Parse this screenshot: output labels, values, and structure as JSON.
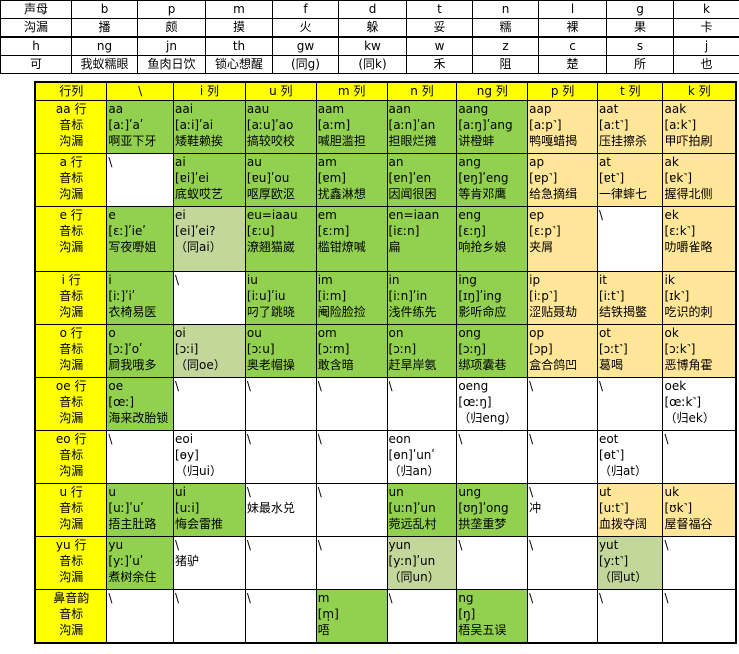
{
  "top_rows": [
    [
      "声母",
      "b",
      "p",
      "m",
      "f",
      "d",
      "t",
      "n",
      "l",
      "g",
      "k"
    ],
    [
      "沟漏",
      "播",
      "颇",
      "摸",
      "火",
      "躲",
      "妥",
      "糯",
      "裸",
      "果",
      "卡"
    ],
    [
      "h",
      "ng",
      "jn",
      "th",
      "gw",
      "kw",
      "w",
      "z",
      "c",
      "s",
      "j"
    ],
    [
      "可",
      "我蚁糯眼",
      "鱼肉日饮",
      "锁心想醒",
      "(同g)",
      "(同k)",
      "禾",
      "阻",
      "楚",
      "所",
      "也"
    ]
  ],
  "header": [
    "行列",
    "\\",
    "i 列",
    "u 列",
    "m 列",
    "n 列",
    "ng 列",
    "p 列",
    "t 列",
    "k 列"
  ],
  "rows": [
    {
      "head": [
        "aa 行",
        "音标",
        "沟漏"
      ],
      "cells": [
        {
          "c": "g",
          "t": [
            "aa",
            "[aː]ʹaʹ",
            "啊亚下牙"
          ]
        },
        {
          "c": "g",
          "t": [
            "aai",
            "[aːi]ʹai",
            "矮鞋赖挨"
          ]
        },
        {
          "c": "g",
          "t": [
            "aau",
            "[aːu]ʹao",
            "搞较咬校"
          ]
        },
        {
          "c": "g",
          "t": [
            "aam",
            "[aːm]",
            "喊胆滥担"
          ]
        },
        {
          "c": "g",
          "t": [
            "aan",
            "[aːn]ʹan",
            "担眼烂摊"
          ]
        },
        {
          "c": "g",
          "t": [
            "aang",
            "[aːŋ]ʹang",
            "讲橙蚌"
          ]
        },
        {
          "c": "y",
          "t": [
            "aap",
            "[aːp˺]",
            "鸭嘎蜡揭"
          ]
        },
        {
          "c": "y",
          "t": [
            "aat",
            "[aːt˺]",
            "压挂擦杀"
          ]
        },
        {
          "c": "y",
          "t": [
            "aak",
            "[aːk˺]",
            "甲吓拍刷"
          ]
        }
      ]
    },
    {
      "head": [
        "a 行",
        "音标",
        "沟漏"
      ],
      "cells": [
        {
          "c": "w",
          "t": [
            "\\",
            "",
            ""
          ]
        },
        {
          "c": "g",
          "t": [
            "ai",
            "[ɐi]ʹei",
            "底蚁哎艺"
          ]
        },
        {
          "c": "g",
          "t": [
            "au",
            "[ɐu]ʹou",
            "呕厚欧沤"
          ]
        },
        {
          "c": "g",
          "t": [
            "am",
            "[ɐm]",
            "扰鑫淋想"
          ]
        },
        {
          "c": "g",
          "t": [
            "an",
            "[ɐn]ʹen",
            "因闻很困"
          ]
        },
        {
          "c": "g",
          "t": [
            "ang",
            "[ɐŋ]ʹeng",
            "等肯邓鹰"
          ]
        },
        {
          "c": "y",
          "t": [
            "ap",
            "[ɐp˺]",
            "给急摘缉"
          ]
        },
        {
          "c": "y",
          "t": [
            "at",
            "[ɐt˺]",
            "一律蟀七"
          ]
        },
        {
          "c": "y",
          "t": [
            "ak",
            "[ɐk˺]",
            "握得北侧"
          ]
        }
      ]
    },
    {
      "head": [
        "e 行",
        "音标",
        "沟漏"
      ],
      "cells": [
        {
          "c": "g",
          "t": [
            "e",
            "[ɛː]ʹieʹ",
            "写夜嘢姐"
          ]
        },
        {
          "c": "lg",
          "t": [
            "ei",
            "[ei]ʹei?",
            "（同ai）"
          ]
        },
        {
          "c": "g",
          "t": [
            "eu=iaau",
            "[ɛːu]",
            "潦翘猫崴"
          ]
        },
        {
          "c": "g",
          "t": [
            "em",
            "[ɛːm]",
            "槛钳燎喊"
          ]
        },
        {
          "c": "g",
          "t": [
            "en=iaan",
            "[iɛːn]",
            "扁",
            ""
          ]
        },
        {
          "c": "g",
          "t": [
            "eng",
            "[ɛːŋ]",
            "响抢乡娘"
          ]
        },
        {
          "c": "y",
          "t": [
            "ep",
            "[ɛːp˺]",
            "夹屑"
          ]
        },
        {
          "c": "w",
          "t": [
            "\\",
            "",
            ""
          ]
        },
        {
          "c": "y",
          "t": [
            "ek",
            "[ɛːk˺]",
            "叻嚼雀略"
          ]
        }
      ]
    },
    {
      "head": [
        "i 行",
        "音标",
        "沟漏"
      ],
      "cells": [
        {
          "c": "g",
          "t": [
            "i",
            "[iː]ʹiʹ",
            "衣椅易医"
          ]
        },
        {
          "c": "w",
          "t": [
            "\\",
            "",
            ""
          ]
        },
        {
          "c": "g",
          "t": [
            "iu",
            "[iːu]ʹiu",
            "叼了跳晓"
          ]
        },
        {
          "c": "g",
          "t": [
            "im",
            "[iːm]",
            "阉险脸捡"
          ]
        },
        {
          "c": "g",
          "t": [
            "in",
            "[iːn]ʹin",
            "浅件练先"
          ]
        },
        {
          "c": "g",
          "t": [
            "ing",
            "[ɪŋ]ʹing",
            "影听命应"
          ]
        },
        {
          "c": "y",
          "t": [
            "ip",
            "[iːp˺]",
            "涩贴聂劫"
          ]
        },
        {
          "c": "y",
          "t": [
            "it",
            "[iːt˺]",
            "结铁揭鳖"
          ]
        },
        {
          "c": "y",
          "t": [
            "ik",
            "[ɪk˺]",
            "吃识的刺"
          ]
        }
      ]
    },
    {
      "head": [
        "o 行",
        "音标",
        "沟漏"
      ],
      "cells": [
        {
          "c": "g",
          "t": [
            "o",
            "[ɔː]ʹoʹ",
            "屙我哦多"
          ]
        },
        {
          "c": "lg",
          "t": [
            "oi",
            "[ɔːi]",
            "（同oe）"
          ]
        },
        {
          "c": "g",
          "t": [
            "ou",
            "[ɔːu]",
            "奥老帽操"
          ]
        },
        {
          "c": "g",
          "t": [
            "om",
            "[ɔːm]",
            "敢含暗"
          ]
        },
        {
          "c": "g",
          "t": [
            "on",
            "[ɔːn]",
            "赶旱岸氨"
          ]
        },
        {
          "c": "g",
          "t": [
            "ong",
            "[ɔːŋ]",
            "绑项囊巷"
          ]
        },
        {
          "c": "y",
          "t": [
            "op",
            "[ɔp]",
            "盒合鸽凹"
          ]
        },
        {
          "c": "y",
          "t": [
            "ot",
            "[ɔːt˺]",
            "葛喝"
          ]
        },
        {
          "c": "y",
          "t": [
            "ok",
            "[ɔːk˺]",
            "恶博角霍"
          ]
        }
      ]
    },
    {
      "head": [
        "oe 行",
        "音标",
        "沟漏"
      ],
      "cells": [
        {
          "c": "g",
          "t": [
            "oe",
            "[œː]",
            "海来改胎锁"
          ]
        },
        {
          "c": "w",
          "t": [
            "\\",
            "",
            ""
          ]
        },
        {
          "c": "w",
          "t": [
            "\\",
            "",
            ""
          ]
        },
        {
          "c": "w",
          "t": [
            "\\",
            "",
            ""
          ]
        },
        {
          "c": "w",
          "t": [
            "\\",
            "",
            ""
          ]
        },
        {
          "c": "w",
          "t": [
            "oeng",
            "[œːŋ]",
            "（归eng）"
          ]
        },
        {
          "c": "w",
          "t": [
            "\\",
            "",
            ""
          ]
        },
        {
          "c": "w",
          "t": [
            "\\",
            "",
            ""
          ]
        },
        {
          "c": "w",
          "t": [
            "oek",
            "[œːk˺]",
            "（归ek）"
          ]
        }
      ]
    },
    {
      "head": [
        "eo 行",
        "音标",
        "沟漏"
      ],
      "cells": [
        {
          "c": "w",
          "t": [
            "\\",
            "",
            ""
          ]
        },
        {
          "c": "w",
          "t": [
            "eoi",
            "[ɵy]",
            "（归ui）"
          ]
        },
        {
          "c": "w",
          "t": [
            "\\",
            "",
            ""
          ]
        },
        {
          "c": "w",
          "t": [
            "\\",
            "",
            ""
          ]
        },
        {
          "c": "w",
          "t": [
            "eon",
            "[ɵn]ʹunʹ",
            "（归an）"
          ]
        },
        {
          "c": "w",
          "t": [
            "\\",
            "",
            ""
          ]
        },
        {
          "c": "w",
          "t": [
            "\\",
            "",
            ""
          ]
        },
        {
          "c": "w",
          "t": [
            "eot",
            "[ɵt˺]",
            "（归at）"
          ]
        },
        {
          "c": "w",
          "t": [
            "\\",
            "",
            ""
          ]
        }
      ]
    },
    {
      "head": [
        "u 行",
        "音标",
        "沟漏"
      ],
      "cells": [
        {
          "c": "g",
          "t": [
            "u",
            "[uː]ʹuʹ",
            "捂主肚路"
          ]
        },
        {
          "c": "g",
          "t": [
            "ui",
            "[uːi]",
            "悔会雷推"
          ]
        },
        {
          "c": "w",
          "t": [
            "\\",
            "妹最水兑",
            ""
          ]
        },
        {
          "c": "w",
          "t": [
            "\\",
            "",
            ""
          ]
        },
        {
          "c": "g",
          "t": [
            "un",
            "[uːn]ʹun",
            "菀远乱村"
          ]
        },
        {
          "c": "g",
          "t": [
            "ung",
            "[ʊŋ]ʹong",
            "拱垄重梦"
          ]
        },
        {
          "c": "w",
          "t": [
            "\\",
            "冲",
            ""
          ]
        },
        {
          "c": "y",
          "t": [
            "ut",
            "[uːt˺]",
            "血拨夺阔"
          ]
        },
        {
          "c": "y",
          "t": [
            "uk",
            "[ʊk˺]",
            "屋督福谷"
          ]
        }
      ]
    },
    {
      "head": [
        "yu 行",
        "音标",
        "沟漏"
      ],
      "cells": [
        {
          "c": "g",
          "t": [
            "yu",
            "[yː]ʹuʹ",
            "煮树余住"
          ]
        },
        {
          "c": "w",
          "t": [
            "\\",
            "猪驴",
            ""
          ]
        },
        {
          "c": "w",
          "t": [
            "\\",
            "",
            ""
          ]
        },
        {
          "c": "w",
          "t": [
            "\\",
            "",
            ""
          ]
        },
        {
          "c": "lg",
          "t": [
            "yun",
            "[yːn]ʹun",
            "（同un）"
          ]
        },
        {
          "c": "w",
          "t": [
            "\\",
            "",
            ""
          ]
        },
        {
          "c": "w",
          "t": [
            "\\",
            "",
            ""
          ]
        },
        {
          "c": "lg",
          "t": [
            "yut",
            "[yːt˺]",
            "（同ut）"
          ]
        },
        {
          "c": "w",
          "t": [
            "\\",
            "",
            ""
          ]
        }
      ]
    },
    {
      "head": [
        "鼻音韵",
        "音标",
        "沟漏"
      ],
      "cells": [
        {
          "c": "w",
          "t": [
            "\\",
            "",
            ""
          ]
        },
        {
          "c": "w",
          "t": [
            "\\",
            "",
            ""
          ]
        },
        {
          "c": "w",
          "t": [
            "\\",
            "",
            ""
          ]
        },
        {
          "c": "g",
          "t": [
            "m",
            "[m̩]",
            "唔"
          ]
        },
        {
          "c": "w",
          "t": [
            "\\",
            "",
            ""
          ]
        },
        {
          "c": "g",
          "t": [
            "ng",
            "[ŋ̩]",
            "梧吴五误"
          ]
        },
        {
          "c": "w",
          "t": [
            "\\",
            "",
            ""
          ]
        },
        {
          "c": "w",
          "t": [
            "\\",
            "",
            ""
          ]
        },
        {
          "c": "w",
          "t": [
            "\\",
            "",
            ""
          ]
        }
      ]
    }
  ]
}
